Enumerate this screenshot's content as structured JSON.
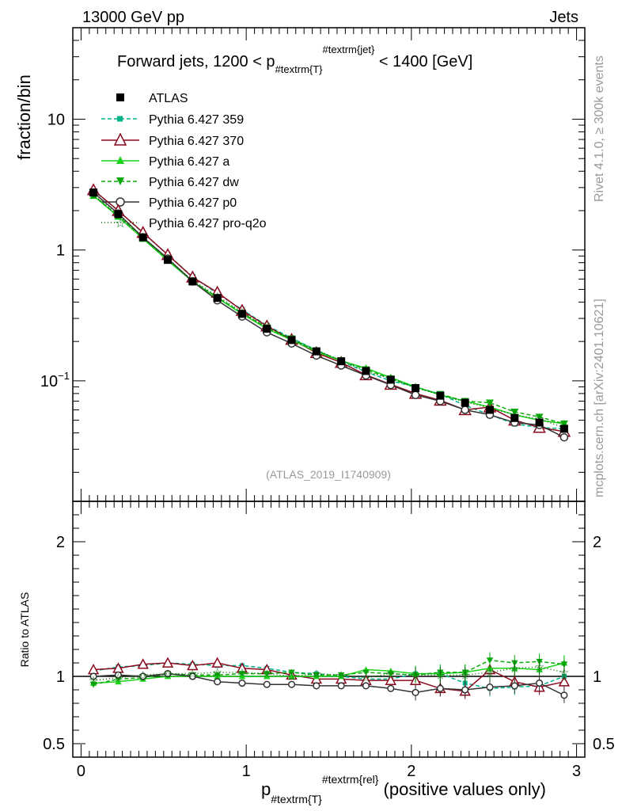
{
  "header": {
    "left": "13000 GeV pp",
    "right": "Jets"
  },
  "title": {
    "main": "Forward jets, 1200 < p",
    "sub": "#textrm{T}",
    "sup": "#textrm{jet}",
    "tail": " < 1400 [GeV]"
  },
  "side": {
    "rivet": "Rivet 4.1.0, ≥ 300k events",
    "mcplots": "mcplots.cern.ch [arXiv:2401.10621]"
  },
  "analysis_id": "(ATLAS_2019_I1740909)",
  "colors": {
    "atlas": "#000000",
    "p359": "#00b38a",
    "p370": "#8b0a1e",
    "pa": "#19d419",
    "pdw": "#0aa80a",
    "pp0": "#333333",
    "pq2o": "#0c6b0c",
    "ref": "#000000"
  },
  "chart_data": [
    {
      "type": "line",
      "panel": "main",
      "ylabel": "fraction/bin",
      "yscale": "log",
      "ylim": [
        0.012,
        50
      ],
      "xlim": [
        -0.05,
        3.05
      ],
      "y_ticks": [
        {
          "value": 0.1,
          "base": "10",
          "exp": "−1"
        },
        {
          "value": 1,
          "base": "1",
          "exp": ""
        },
        {
          "value": 10,
          "base": "10",
          "exp": ""
        }
      ],
      "x": [
        0.075,
        0.225,
        0.375,
        0.525,
        0.675,
        0.825,
        0.975,
        1.125,
        1.275,
        1.425,
        1.575,
        1.725,
        1.875,
        2.025,
        2.175,
        2.325,
        2.475,
        2.625,
        2.775,
        2.925
      ],
      "series": [
        {
          "name": "ATLAS",
          "key": "atlas",
          "marker": "square",
          "dash": "none",
          "values": [
            2.75,
            1.88,
            1.25,
            0.84,
            0.575,
            0.43,
            0.325,
            0.25,
            0.205,
            0.168,
            0.141,
            0.119,
            0.102,
            0.088,
            0.077,
            0.068,
            0.06,
            0.052,
            0.048,
            0.043
          ]
        },
        {
          "name": "Pythia 6.427 359",
          "key": "p359",
          "marker": "square-small",
          "dash": "5,3",
          "values": [
            2.85,
            2.0,
            1.35,
            0.92,
            0.625,
            0.465,
            0.35,
            0.265,
            0.212,
            0.172,
            0.141,
            0.117,
            0.1,
            0.09,
            0.079,
            0.065,
            0.055,
            0.047,
            0.044,
            0.043
          ]
        },
        {
          "name": "Pythia 6.427 370",
          "key": "p370",
          "marker": "triangle-open",
          "dash": "none",
          "values": [
            2.88,
            2.0,
            1.36,
            0.92,
            0.62,
            0.475,
            0.345,
            0.262,
            0.207,
            0.164,
            0.138,
            0.111,
            0.094,
            0.08,
            0.071,
            0.06,
            0.063,
            0.05,
            0.044,
            0.041
          ]
        },
        {
          "name": "Pythia 6.427 a",
          "key": "pa",
          "marker": "triangle",
          "dash": "none",
          "values": [
            2.6,
            1.8,
            1.22,
            0.83,
            0.575,
            0.43,
            0.325,
            0.25,
            0.205,
            0.167,
            0.142,
            0.125,
            0.106,
            0.09,
            0.078,
            0.07,
            0.063,
            0.055,
            0.05,
            0.047
          ]
        },
        {
          "name": "Pythia 6.427 dw",
          "key": "pdw",
          "marker": "triangle-down",
          "dash": "5,3",
          "values": [
            2.62,
            1.82,
            1.24,
            0.85,
            0.58,
            0.435,
            0.33,
            0.255,
            0.21,
            0.17,
            0.143,
            0.122,
            0.104,
            0.089,
            0.079,
            0.07,
            0.068,
            0.058,
            0.053,
            0.047
          ]
        },
        {
          "name": "Pythia 6.427 p0",
          "key": "pp0",
          "marker": "circle-open",
          "dash": "none",
          "values": [
            2.75,
            1.9,
            1.25,
            0.86,
            0.575,
            0.412,
            0.31,
            0.235,
            0.193,
            0.156,
            0.131,
            0.11,
            0.093,
            0.078,
            0.07,
            0.06,
            0.055,
            0.048,
            0.046,
            0.037
          ]
        },
        {
          "name": "Pythia 6.427 pro-q2o",
          "key": "pq2o",
          "marker": "star-open",
          "dash": "1,3",
          "values": [
            2.65,
            1.85,
            1.26,
            0.86,
            0.585,
            0.445,
            0.335,
            0.255,
            0.205,
            0.172,
            0.143,
            0.118,
            0.104,
            0.089,
            0.078,
            0.069,
            0.062,
            0.055,
            0.051,
            0.044
          ]
        }
      ]
    },
    {
      "type": "line",
      "panel": "ratio",
      "ylabel": "Ratio to ATLAS",
      "xlabel_main": "p",
      "xlabel_sub": "#textrm{T}",
      "xlabel_sup": "#textrm{rel}",
      "xlabel_tail": " (positive values only)",
      "ylim": [
        0.4,
        2.3
      ],
      "xlim": [
        -0.05,
        3.05
      ],
      "y_ticks": [
        0.5,
        1,
        2
      ],
      "y_tick_labels": [
        "0.5",
        "1",
        "2"
      ],
      "x_ticks": [
        0,
        1,
        2,
        3
      ],
      "x_tick_labels": [
        "0",
        "1",
        "2",
        "3"
      ],
      "x": [
        0.075,
        0.225,
        0.375,
        0.525,
        0.675,
        0.825,
        0.975,
        1.125,
        1.275,
        1.425,
        1.575,
        1.725,
        1.875,
        2.025,
        2.175,
        2.325,
        2.475,
        2.625,
        2.775,
        2.925
      ],
      "series": [
        {
          "name": "Pythia 6.427 359",
          "key": "p359",
          "values": [
            1.04,
            1.07,
            1.08,
            1.1,
            1.09,
            1.08,
            1.08,
            1.06,
            1.03,
            1.02,
            1.0,
            0.98,
            0.98,
            1.02,
            1.02,
            0.95,
            0.91,
            0.92,
            0.93,
            1.0
          ]
        },
        {
          "name": "Pythia 6.427 370",
          "key": "p370",
          "values": [
            1.05,
            1.06,
            1.09,
            1.1,
            1.08,
            1.1,
            1.06,
            1.05,
            1.01,
            0.98,
            0.98,
            0.97,
            0.97,
            0.97,
            0.91,
            0.89,
            1.05,
            0.96,
            0.92,
            0.96
          ]
        },
        {
          "name": "Pythia 6.427 a",
          "key": "pa",
          "values": [
            0.95,
            0.96,
            0.98,
            1.0,
            1.0,
            1.0,
            1.0,
            1.0,
            1.0,
            1.0,
            1.0,
            1.05,
            1.04,
            1.02,
            1.02,
            1.03,
            1.06,
            1.06,
            1.05,
            1.1
          ]
        },
        {
          "name": "Pythia 6.427 dw",
          "key": "pdw",
          "values": [
            0.94,
            0.98,
            0.99,
            1.02,
            1.01,
            1.01,
            1.02,
            1.02,
            1.03,
            1.01,
            1.01,
            1.03,
            1.02,
            1.01,
            1.03,
            1.03,
            1.12,
            1.1,
            1.11,
            1.09
          ]
        },
        {
          "name": "Pythia 6.427 p0",
          "key": "pp0",
          "values": [
            1.0,
            1.01,
            1.0,
            1.02,
            1.0,
            0.96,
            0.95,
            0.94,
            0.94,
            0.93,
            0.93,
            0.93,
            0.91,
            0.88,
            0.91,
            0.9,
            0.92,
            0.93,
            0.95,
            0.86
          ]
        },
        {
          "name": "Pythia 6.427 pro-q2o",
          "key": "pq2o",
          "values": [
            0.97,
            0.99,
            1.01,
            1.02,
            1.02,
            1.03,
            1.03,
            1.02,
            1.0,
            1.02,
            1.01,
            0.99,
            1.02,
            1.01,
            1.01,
            1.01,
            1.03,
            1.06,
            1.07,
            1.03
          ]
        }
      ]
    }
  ]
}
